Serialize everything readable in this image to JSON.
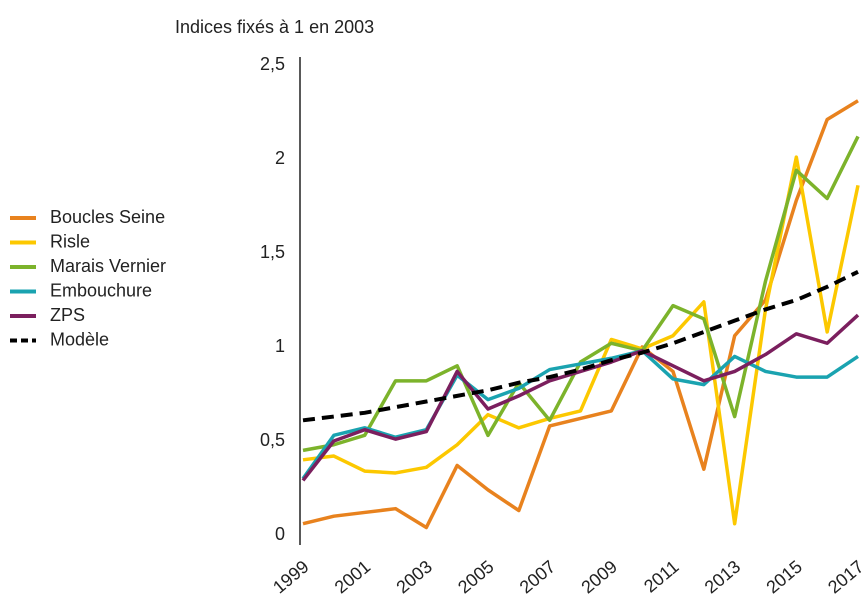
{
  "chart_data": {
    "type": "line",
    "subtitle": "Indices fixés à 1 en 2003",
    "x": [
      1999,
      2000,
      2001,
      2002,
      2003,
      2004,
      2005,
      2006,
      2007,
      2008,
      2009,
      2010,
      2011,
      2012,
      2013,
      2014,
      2015,
      2016,
      2017
    ],
    "xlim": [
      1999,
      2017
    ],
    "xticks": [
      1999,
      2001,
      2003,
      2005,
      2007,
      2009,
      2011,
      2013,
      2015,
      2017
    ],
    "ylim": [
      0,
      2.5
    ],
    "yticks": [
      0,
      {
        "value": 0.5,
        "label": "0,5"
      },
      1,
      {
        "value": 1.5,
        "label": "1,5"
      },
      2,
      {
        "value": 2.5,
        "label": "2,5"
      }
    ],
    "grid": false,
    "legend": "left",
    "series": [
      {
        "name": "Boucles Seine",
        "color": "#e8821e",
        "values": [
          0.06,
          0.1,
          0.12,
          0.14,
          0.04,
          0.37,
          0.24,
          0.13,
          0.58,
          0.62,
          0.66,
          1.0,
          0.87,
          0.35,
          1.06,
          1.25,
          1.78,
          2.21,
          2.31
        ]
      },
      {
        "name": "Risle",
        "color": "#fcc800",
        "values": [
          0.4,
          0.42,
          0.34,
          0.33,
          0.36,
          0.48,
          0.64,
          0.57,
          0.62,
          0.66,
          1.04,
          0.99,
          1.06,
          1.24,
          0.06,
          1.2,
          2.01,
          1.08,
          1.86
        ]
      },
      {
        "name": "Marais Vernier",
        "color": "#7cb32b",
        "values": [
          0.45,
          0.48,
          0.53,
          0.82,
          0.82,
          0.9,
          0.53,
          0.81,
          0.61,
          0.92,
          1.02,
          0.98,
          1.22,
          1.15,
          0.63,
          1.35,
          1.94,
          1.79,
          2.12
        ]
      },
      {
        "name": "Embouchure",
        "color": "#1aa3b0",
        "values": [
          0.3,
          0.53,
          0.57,
          0.52,
          0.56,
          0.85,
          0.72,
          0.78,
          0.88,
          0.91,
          0.94,
          0.98,
          0.83,
          0.8,
          0.95,
          0.87,
          0.84,
          0.84,
          0.95
        ]
      },
      {
        "name": "ZPS",
        "color": "#7b1f5e",
        "values": [
          0.29,
          0.5,
          0.56,
          0.51,
          0.55,
          0.87,
          0.67,
          0.74,
          0.82,
          0.87,
          0.92,
          0.98,
          0.9,
          0.82,
          0.87,
          0.96,
          1.07,
          1.02,
          1.17
        ]
      },
      {
        "name": "Modèle",
        "color": "#000000",
        "dashed": true,
        "values": [
          0.61,
          0.63,
          0.65,
          0.68,
          0.71,
          0.74,
          0.77,
          0.81,
          0.84,
          0.88,
          0.93,
          0.97,
          1.02,
          1.08,
          1.14,
          1.2,
          1.25,
          1.32,
          1.4
        ]
      }
    ]
  }
}
